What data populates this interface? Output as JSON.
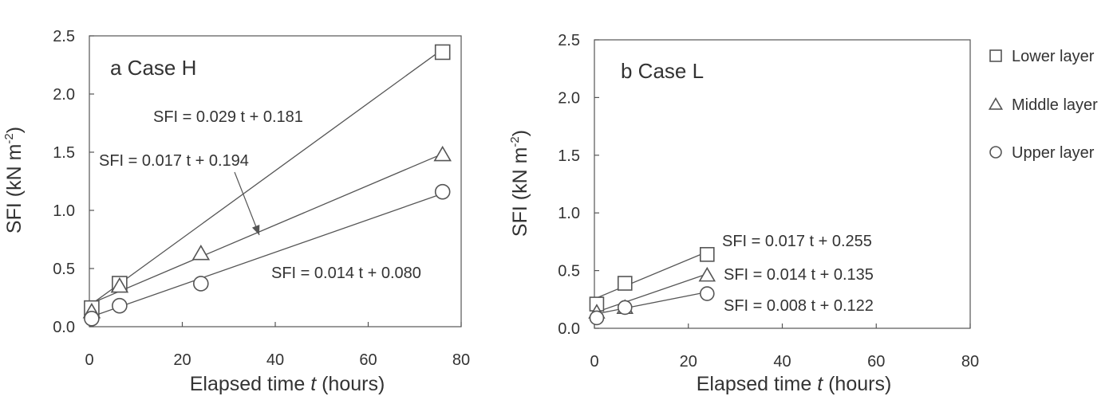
{
  "chart_data": [
    {
      "type": "scatter",
      "panel_label": "a",
      "title": "Case H",
      "xlabel_prefix": "Elapsed time ",
      "xlabel_var": "t",
      "xlabel_suffix": " (hours)",
      "ylabel": "SFI  (kN m",
      "ylabel_sup": "-2",
      "ylabel_close": ")",
      "xlim": [
        0,
        80
      ],
      "ylim": [
        0,
        2.5
      ],
      "xticks": [
        "0",
        "20",
        "40",
        "60",
        "80"
      ],
      "yticks": [
        "0.0",
        "0.5",
        "1.0",
        "1.5",
        "2.0",
        "2.5"
      ],
      "grid": false,
      "series": [
        {
          "name": "Lower layer",
          "marker": "square",
          "x": [
            0.5,
            6.5,
            76
          ],
          "y": [
            0.16,
            0.37,
            2.36
          ],
          "fit": {
            "slope": 0.029,
            "intercept": 0.181
          },
          "equation": "SFI = 0.029 t + 0.181"
        },
        {
          "name": "Middle layer",
          "marker": "triangle",
          "x": [
            0.5,
            6.5,
            24,
            76
          ],
          "y": [
            0.13,
            0.35,
            0.63,
            1.48
          ],
          "fit": {
            "slope": 0.017,
            "intercept": 0.194
          },
          "equation": "SFI = 0.017 t + 0.194"
        },
        {
          "name": "Upper layer",
          "marker": "circle",
          "x": [
            0.5,
            6.5,
            24,
            76
          ],
          "y": [
            0.07,
            0.18,
            0.37,
            1.16
          ],
          "fit": {
            "slope": 0.014,
            "intercept": 0.08
          },
          "equation": "SFI = 0.014 t + 0.080"
        }
      ]
    },
    {
      "type": "scatter",
      "panel_label": "b",
      "title": "Case L",
      "xlabel_prefix": "Elapsed time ",
      "xlabel_var": "t",
      "xlabel_suffix": " (hours)",
      "ylabel": "SFI  (kN m",
      "ylabel_sup": "-2",
      "ylabel_close": ")",
      "xlim": [
        0,
        80
      ],
      "ylim": [
        0,
        2.5
      ],
      "xticks": [
        "0",
        "20",
        "40",
        "60",
        "80"
      ],
      "yticks": [
        "0.0",
        "0.5",
        "1.0",
        "1.5",
        "2.0",
        "2.5"
      ],
      "grid": false,
      "series": [
        {
          "name": "Lower layer",
          "marker": "square",
          "x": [
            0.5,
            6.5,
            24
          ],
          "y": [
            0.21,
            0.39,
            0.64
          ],
          "fit": {
            "slope": 0.017,
            "intercept": 0.255
          },
          "equation": "SFI = 0.017 t + 0.255"
        },
        {
          "name": "Middle layer",
          "marker": "triangle",
          "x": [
            0.5,
            6.5,
            24
          ],
          "y": [
            0.14,
            0.18,
            0.46
          ],
          "fit": {
            "slope": 0.014,
            "intercept": 0.135
          },
          "equation": "SFI = 0.014 t + 0.135"
        },
        {
          "name": "Upper layer",
          "marker": "circle",
          "x": [
            0.5,
            6.5,
            24
          ],
          "y": [
            0.09,
            0.18,
            0.3
          ],
          "fit": {
            "slope": 0.008,
            "intercept": 0.122
          },
          "equation": "SFI = 0.008 t + 0.122"
        }
      ]
    }
  ],
  "legend": {
    "placement": "right",
    "items": [
      {
        "label": "Lower layer",
        "marker": "square"
      },
      {
        "label": "Middle layer",
        "marker": "triangle"
      },
      {
        "label": "Upper layer",
        "marker": "circle"
      }
    ]
  },
  "colors": {
    "line": "#555555",
    "text": "#333333",
    "background": "#ffffff"
  }
}
